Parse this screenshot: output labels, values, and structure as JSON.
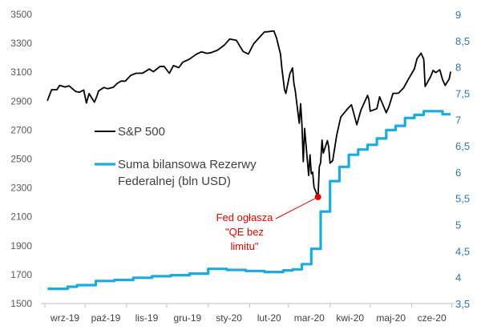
{
  "chart_data": {
    "type": "line",
    "title": "",
    "colors": {
      "sp500": "#000000",
      "fed": "#1AACE0",
      "annotation": "#E00000"
    },
    "x_ticks": [
      "wrz-19",
      "paź-19",
      "lis-19",
      "gru-19",
      "sty-20",
      "lut-20",
      "mar-20",
      "kwi-20",
      "maj-20",
      "cze-20"
    ],
    "y_left": {
      "min": 1500,
      "max": 3500,
      "ticks": [
        "1500",
        "1700",
        "1900",
        "2100",
        "2300",
        "2500",
        "2700",
        "2900",
        "3100",
        "3300",
        "3500"
      ]
    },
    "y_right": {
      "min": 3.5,
      "max": 9,
      "ticks": [
        "3,5",
        "4",
        "4,5",
        "5",
        "5,5",
        "6",
        "6,5",
        "7",
        "7,5",
        "8",
        "8,5",
        "9"
      ]
    },
    "legend": [
      {
        "key": "sp500",
        "lines": [
          "S&P 500"
        ]
      },
      {
        "key": "fed",
        "lines": [
          "Suma bilansowa Rezerwy",
          "Federalnej (bln USD)"
        ]
      }
    ],
    "annotation": {
      "lines": [
        "Fed ogłasza",
        "\"QE bez",
        "limitu\""
      ],
      "x": "2020-03-23",
      "y": 2237
    },
    "series": [
      {
        "name": "S&P 500",
        "key": "sp500",
        "axis": "left",
        "step": false,
        "points": [
          [
            "2019-09-03",
            2906
          ],
          [
            "2019-09-06",
            2979
          ],
          [
            "2019-09-10",
            2979
          ],
          [
            "2019-09-12",
            3009
          ],
          [
            "2019-09-16",
            2998
          ],
          [
            "2019-09-19",
            3006
          ],
          [
            "2019-09-24",
            2967
          ],
          [
            "2019-09-27",
            2962
          ],
          [
            "2019-09-30",
            2977
          ],
          [
            "2019-10-02",
            2887
          ],
          [
            "2019-10-04",
            2952
          ],
          [
            "2019-10-08",
            2893
          ],
          [
            "2019-10-10",
            2938
          ],
          [
            "2019-10-11",
            2970
          ],
          [
            "2019-10-15",
            2995
          ],
          [
            "2019-10-18",
            2986
          ],
          [
            "2019-10-22",
            2996
          ],
          [
            "2019-10-25",
            3023
          ],
          [
            "2019-10-28",
            3039
          ],
          [
            "2019-10-31",
            3038
          ],
          [
            "2019-11-04",
            3078
          ],
          [
            "2019-11-08",
            3093
          ],
          [
            "2019-11-13",
            3094
          ],
          [
            "2019-11-18",
            3122
          ],
          [
            "2019-11-21",
            3104
          ],
          [
            "2019-11-26",
            3140
          ],
          [
            "2019-11-29",
            3141
          ],
          [
            "2019-12-03",
            3093
          ],
          [
            "2019-12-06",
            3146
          ],
          [
            "2019-12-10",
            3132
          ],
          [
            "2019-12-13",
            3169
          ],
          [
            "2019-12-18",
            3191
          ],
          [
            "2019-12-23",
            3224
          ],
          [
            "2019-12-27",
            3241
          ],
          [
            "2019-12-31",
            3231
          ],
          [
            "2020-01-03",
            3235
          ],
          [
            "2020-01-08",
            3253
          ],
          [
            "2020-01-13",
            3288
          ],
          [
            "2020-01-17",
            3330
          ],
          [
            "2020-01-22",
            3321
          ],
          [
            "2020-01-27",
            3244
          ],
          [
            "2020-01-31",
            3226
          ],
          [
            "2020-02-04",
            3298
          ],
          [
            "2020-02-07",
            3328
          ],
          [
            "2020-02-12",
            3379
          ],
          [
            "2020-02-14",
            3380
          ],
          [
            "2020-02-19",
            3386
          ],
          [
            "2020-02-21",
            3338
          ],
          [
            "2020-02-24",
            3226
          ],
          [
            "2020-02-25",
            3128
          ],
          [
            "2020-02-27",
            2979
          ],
          [
            "2020-02-28",
            2954
          ],
          [
            "2020-03-02",
            3090
          ],
          [
            "2020-03-04",
            3130
          ],
          [
            "2020-03-05",
            3023
          ],
          [
            "2020-03-06",
            2972
          ],
          [
            "2020-03-09",
            2747
          ],
          [
            "2020-03-10",
            2882
          ],
          [
            "2020-03-11",
            2741
          ],
          [
            "2020-03-12",
            2481
          ],
          [
            "2020-03-13",
            2711
          ],
          [
            "2020-03-16",
            2386
          ],
          [
            "2020-03-17",
            2529
          ],
          [
            "2020-03-18",
            2398
          ],
          [
            "2020-03-19",
            2409
          ],
          [
            "2020-03-20",
            2305
          ],
          [
            "2020-03-23",
            2237
          ],
          [
            "2020-03-24",
            2447
          ],
          [
            "2020-03-25",
            2475
          ],
          [
            "2020-03-26",
            2631
          ],
          [
            "2020-03-27",
            2541
          ],
          [
            "2020-03-30",
            2627
          ],
          [
            "2020-03-31",
            2585
          ],
          [
            "2020-04-01",
            2471
          ],
          [
            "2020-04-03",
            2489
          ],
          [
            "2020-04-06",
            2664
          ],
          [
            "2020-04-08",
            2750
          ],
          [
            "2020-04-09",
            2790
          ],
          [
            "2020-04-14",
            2846
          ],
          [
            "2020-04-17",
            2875
          ],
          [
            "2020-04-21",
            2737
          ],
          [
            "2020-04-24",
            2837
          ],
          [
            "2020-04-29",
            2940
          ],
          [
            "2020-04-30",
            2912
          ],
          [
            "2020-05-01",
            2831
          ],
          [
            "2020-05-06",
            2848
          ],
          [
            "2020-05-08",
            2930
          ],
          [
            "2020-05-13",
            2820
          ],
          [
            "2020-05-15",
            2863
          ],
          [
            "2020-05-18",
            2954
          ],
          [
            "2020-05-22",
            2955
          ],
          [
            "2020-05-26",
            2992
          ],
          [
            "2020-05-29",
            3044
          ],
          [
            "2020-06-03",
            3123
          ],
          [
            "2020-06-05",
            3194
          ],
          [
            "2020-06-08",
            3232
          ],
          [
            "2020-06-10",
            3190
          ],
          [
            "2020-06-11",
            3002
          ],
          [
            "2020-06-15",
            3067
          ],
          [
            "2020-06-17",
            3113
          ],
          [
            "2020-06-19",
            3098
          ],
          [
            "2020-06-22",
            3117
          ],
          [
            "2020-06-24",
            3050
          ],
          [
            "2020-06-26",
            3009
          ],
          [
            "2020-06-29",
            3053
          ],
          [
            "2020-06-30",
            3100
          ]
        ]
      },
      {
        "name": "Suma bilansowa Rezerwy Federalnej (bln USD)",
        "key": "fed",
        "axis": "right",
        "step": true,
        "points": [
          [
            "2019-09-03",
            3.78
          ],
          [
            "2019-09-18",
            3.82
          ],
          [
            "2019-09-25",
            3.85
          ],
          [
            "2019-10-09",
            3.93
          ],
          [
            "2019-10-23",
            3.95
          ],
          [
            "2019-11-06",
            3.99
          ],
          [
            "2019-11-20",
            4.02
          ],
          [
            "2019-12-04",
            4.04
          ],
          [
            "2019-12-18",
            4.07
          ],
          [
            "2020-01-01",
            4.16
          ],
          [
            "2020-01-15",
            4.14
          ],
          [
            "2020-01-29",
            4.12
          ],
          [
            "2020-02-12",
            4.1
          ],
          [
            "2020-02-26",
            4.13
          ],
          [
            "2020-03-04",
            4.15
          ],
          [
            "2020-03-11",
            4.25
          ],
          [
            "2020-03-18",
            4.54
          ],
          [
            "2020-03-25",
            5.25
          ],
          [
            "2020-04-01",
            5.83
          ],
          [
            "2020-04-08",
            6.1
          ],
          [
            "2020-04-15",
            6.33
          ],
          [
            "2020-04-22",
            6.43
          ],
          [
            "2020-04-29",
            6.52
          ],
          [
            "2020-05-06",
            6.64
          ],
          [
            "2020-05-13",
            6.8
          ],
          [
            "2020-05-20",
            6.88
          ],
          [
            "2020-05-27",
            7.03
          ],
          [
            "2020-06-03",
            7.09
          ],
          [
            "2020-06-10",
            7.16
          ],
          [
            "2020-06-24",
            7.1
          ],
          [
            "2020-06-30",
            7.1
          ]
        ]
      }
    ]
  }
}
